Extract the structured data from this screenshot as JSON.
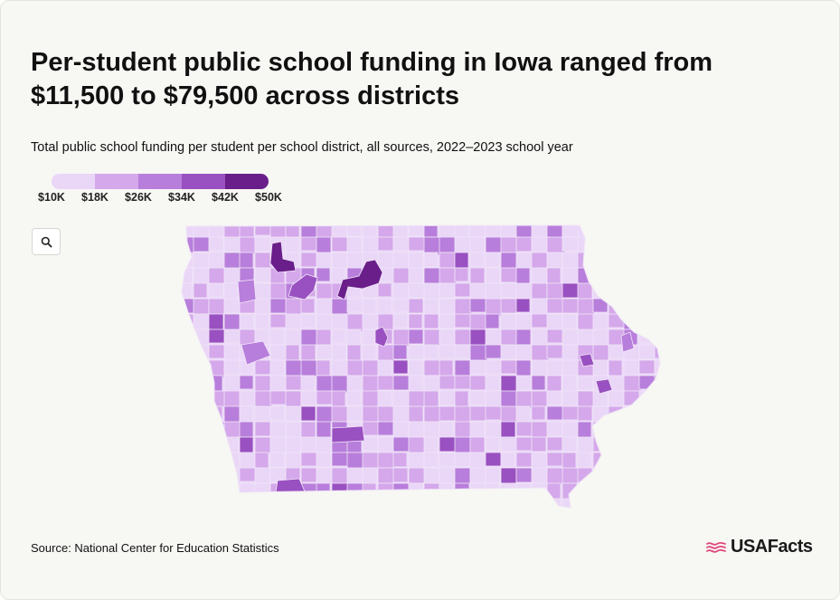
{
  "title": "Per-student public school funding in Iowa ranged from $11,500 to $79,500 across districts",
  "subtitle": "Total public school funding per student per school district, all sources, 2022–2023 school year",
  "legend": {
    "labels": [
      "$10K",
      "$18K",
      "$26K",
      "$34K",
      "$42K",
      "$50K"
    ],
    "colors": [
      "#ead6f7",
      "#d4a8ea",
      "#b87edb",
      "#9950c0",
      "#6a1e8a"
    ]
  },
  "zoom": {
    "icon": "search-icon"
  },
  "map": {
    "region": "Iowa",
    "base_color": "#ead6f7",
    "border_color": "#f7f7f4"
  },
  "source": "Source: National Center for Education Statistics",
  "logo": {
    "text": "USAFacts",
    "flag_color": "#e0457b"
  }
}
